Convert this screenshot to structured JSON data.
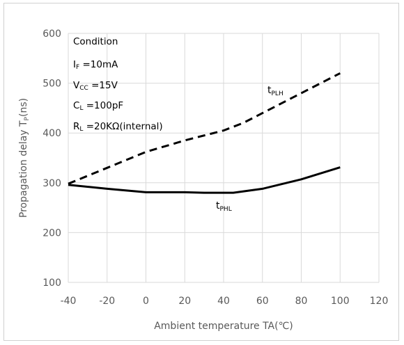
{
  "chart_data": {
    "type": "line",
    "xlabel": "Ambient temperature TA(℃)",
    "ylabel_main": "Propagation delay  T",
    "ylabel_sub": "P",
    "ylabel_unit": "(ns)",
    "xlim": [
      -40,
      120
    ],
    "ylim": [
      100,
      600
    ],
    "xticks": [
      -40,
      -20,
      0,
      20,
      40,
      60,
      80,
      100,
      120
    ],
    "yticks": [
      100,
      200,
      300,
      400,
      500,
      600
    ],
    "grid": true,
    "series": [
      {
        "name_main": "t",
        "name_sub": "PLH",
        "style": "dashed",
        "color": "#000000",
        "x": [
          -40,
          -20,
          0,
          20,
          40,
          50,
          60,
          80,
          100
        ],
        "y": [
          298,
          330,
          362,
          385,
          405,
          420,
          440,
          480,
          520
        ]
      },
      {
        "name_main": "t",
        "name_sub": "PHL",
        "style": "solid",
        "color": "#000000",
        "x": [
          -40,
          -20,
          0,
          20,
          30,
          45,
          60,
          80,
          100
        ],
        "y": [
          296,
          288,
          281,
          281,
          280,
          280,
          288,
          307,
          331
        ]
      }
    ],
    "conditions": [
      {
        "main": "Condition",
        "sub": "",
        "rest": ""
      },
      {
        "main": "I",
        "sub": "F",
        "rest": " =10mA"
      },
      {
        "main": "V",
        "sub": "CC",
        "rest": " =15V"
      },
      {
        "main": "C",
        "sub": "L",
        "rest": " =100pF"
      },
      {
        "main": "R",
        "sub": "L",
        "rest": " =20KΩ(internal)"
      }
    ],
    "colors": {
      "grid": "#d9d9d9",
      "tick": "#595959",
      "curve": "#000000"
    }
  }
}
